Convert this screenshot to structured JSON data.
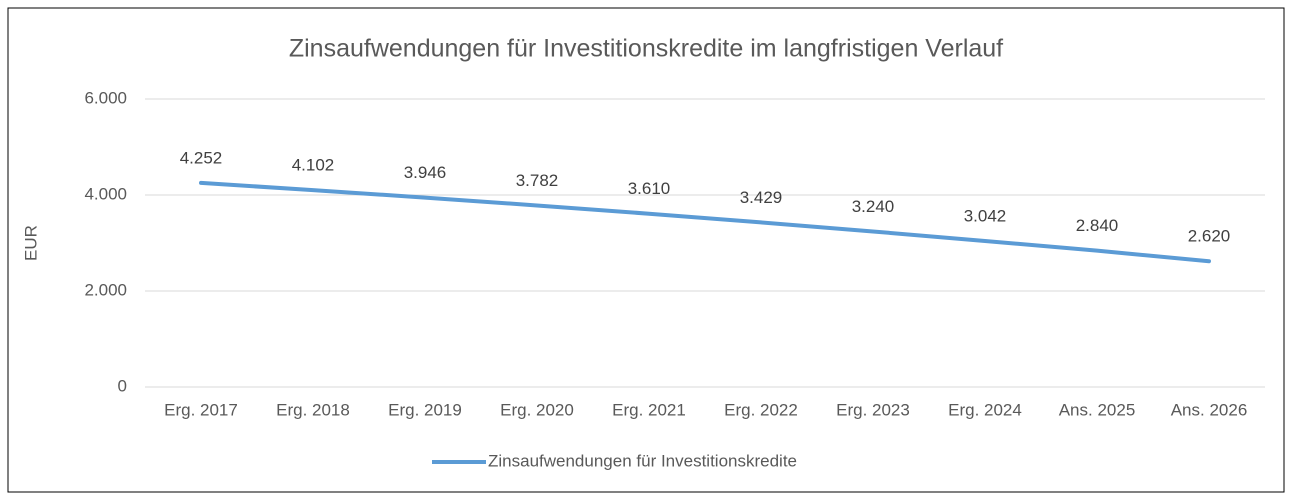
{
  "chart_data": {
    "type": "line",
    "title": "Zinsaufwendungen für Investitionskredite im langfristigen Verlauf",
    "y_label": "EUR",
    "categories": [
      "Erg. 2017",
      "Erg. 2018",
      "Erg. 2019",
      "Erg. 2020",
      "Erg. 2021",
      "Erg. 2022",
      "Erg. 2023",
      "Erg. 2024",
      "Ans. 2025",
      "Ans. 2026"
    ],
    "series": [
      {
        "name": "Zinsaufwendungen für Investitionskredite",
        "color": "#5b9bd5",
        "values": [
          4252,
          4102,
          3946,
          3782,
          3610,
          3429,
          3240,
          3042,
          2840,
          2620
        ],
        "value_labels": [
          "4.252",
          "4.102",
          "3.946",
          "3.782",
          "3.610",
          "3.429",
          "3.240",
          "3.042",
          "2.840",
          "2.620"
        ]
      }
    ],
    "ylim": [
      0,
      6000
    ],
    "yticks": [
      0,
      {
        "value": 2000,
        "label": "2.000"
      },
      {
        "value": 4000,
        "label": "4.000"
      },
      {
        "value": 6000,
        "label": "6.000"
      }
    ],
    "grid": true,
    "legend": "bottom"
  }
}
